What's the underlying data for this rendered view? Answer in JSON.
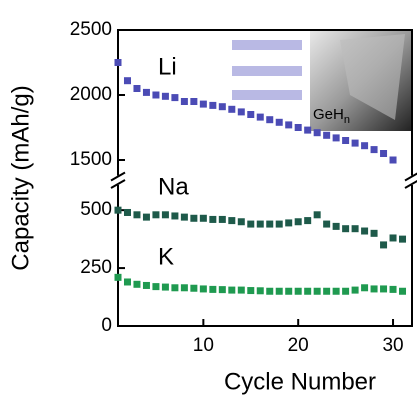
{
  "chart_data": {
    "type": "scatter",
    "broken_axis": true,
    "x_label": "Cycle Number",
    "y_label": "Capacity (mAh/g)",
    "x": [
      1,
      2,
      3,
      4,
      5,
      6,
      7,
      8,
      9,
      10,
      11,
      12,
      13,
      14,
      15,
      16,
      17,
      18,
      19,
      20,
      21,
      22,
      23,
      24,
      25,
      26,
      27,
      28,
      29,
      30,
      31
    ],
    "series": [
      {
        "name": "Li",
        "color": "#4b4bb5",
        "axis": "y2",
        "values": [
          2250,
          2110,
          2050,
          2020,
          2000,
          1990,
          1980,
          1950,
          1950,
          1930,
          1920,
          1910,
          1890,
          1870,
          1850,
          1830,
          1810,
          1790,
          1770,
          1750,
          1730,
          1710,
          1690,
          1670,
          1650,
          1630,
          1610,
          1580,
          1550,
          1500,
          null
        ]
      },
      {
        "name": "Na",
        "color": "#1e5a4a",
        "values": [
          500,
          490,
          480,
          470,
          480,
          480,
          475,
          470,
          465,
          465,
          460,
          460,
          455,
          450,
          440,
          440,
          440,
          440,
          445,
          450,
          455,
          480,
          440,
          430,
          420,
          420,
          410,
          400,
          350,
          380,
          375
        ]
      },
      {
        "name": "K",
        "color": "#1f9a50",
        "values": [
          210,
          190,
          180,
          175,
          170,
          168,
          165,
          165,
          163,
          160,
          158,
          157,
          155,
          155,
          153,
          152,
          150,
          150,
          150,
          150,
          150,
          150,
          150,
          150,
          150,
          155,
          165,
          160,
          160,
          158,
          150
        ]
      }
    ],
    "xlim": [
      1,
      32
    ],
    "xticks": [
      10,
      20,
      30
    ],
    "ylim": [
      0,
      600
    ],
    "yticks": [
      0,
      250,
      500
    ],
    "y2lim": [
      1350,
      2500
    ],
    "y2ticks": [
      1500,
      2000,
      2500
    ],
    "inset": {
      "label": "GeH",
      "subscript": "n"
    }
  }
}
